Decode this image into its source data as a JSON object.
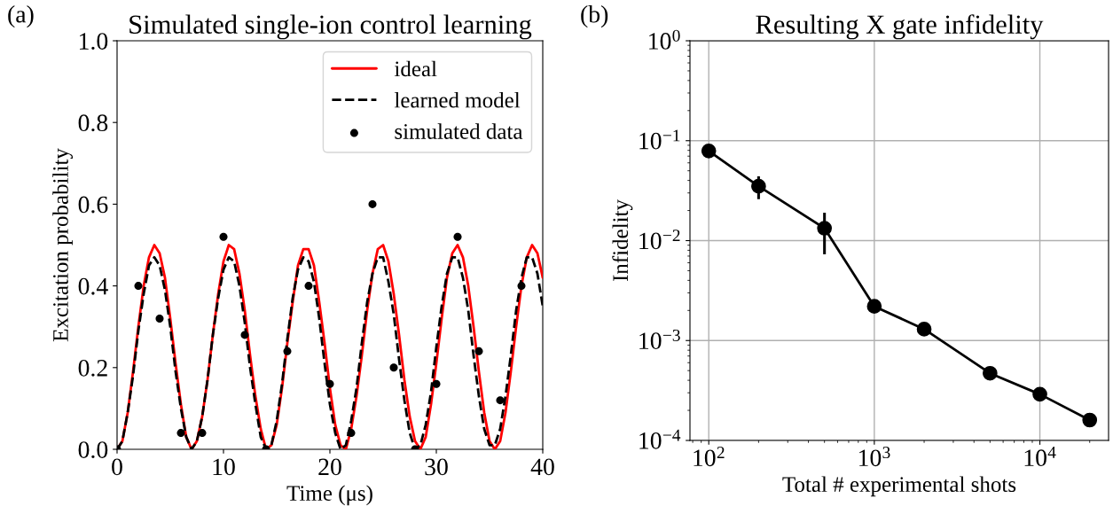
{
  "chart_data": [
    {
      "type": "line",
      "title": "Simulated single-ion control learning",
      "xlabel": "Time (μs)",
      "ylabel": "Excitation probability",
      "xlim": [
        0,
        40
      ],
      "ylim": [
        0,
        1
      ],
      "xticks": [
        0,
        10,
        20,
        30,
        40
      ],
      "yticks": [
        {
          "value": 0,
          "label": "0.0"
        },
        0.2,
        0.4,
        0.6,
        0.8,
        {
          "value": 1,
          "label": "1.0"
        }
      ],
      "legend": "top right",
      "annotations": [
        "(a)"
      ],
      "x": [
        0,
        0.5,
        1,
        1.5,
        2,
        2.5,
        3,
        3.5,
        4,
        4.5,
        5,
        5.5,
        6,
        6.5,
        7,
        7.5,
        8,
        8.5,
        9,
        9.5,
        10,
        10.5,
        11,
        11.5,
        12,
        12.5,
        13,
        13.5,
        14,
        14.5,
        15,
        15.5,
        16,
        16.5,
        17,
        17.5,
        18,
        18.5,
        19,
        19.5,
        20,
        20.5,
        21,
        21.5,
        22,
        22.5,
        23,
        23.5,
        24,
        24.5,
        25,
        25.5,
        26,
        26.5,
        27,
        27.5,
        28,
        28.5,
        29,
        29.5,
        30,
        30.5,
        31,
        31.5,
        32,
        32.5,
        33,
        33.5,
        34,
        34.5,
        35,
        35.5,
        36,
        36.5,
        37,
        37.5,
        38,
        38.5,
        39,
        39.5,
        40
      ],
      "series": [
        {
          "name": "ideal",
          "type": "line",
          "color": "#ff0000",
          "line_style": "solid",
          "values": [
            0,
            0.02,
            0.09,
            0.19,
            0.3,
            0.4,
            0.47,
            0.5,
            0.48,
            0.42,
            0.32,
            0.21,
            0.11,
            0.03,
            0.0,
            0.02,
            0.08,
            0.17,
            0.28,
            0.38,
            0.46,
            0.5,
            0.49,
            0.43,
            0.34,
            0.23,
            0.13,
            0.05,
            0.0,
            0.01,
            0.06,
            0.15,
            0.26,
            0.36,
            0.45,
            0.49,
            0.49,
            0.45,
            0.36,
            0.26,
            0.15,
            0.06,
            0.01,
            0.0,
            0.05,
            0.13,
            0.23,
            0.34,
            0.43,
            0.49,
            0.5,
            0.46,
            0.38,
            0.28,
            0.17,
            0.08,
            0.02,
            0.0,
            0.03,
            0.11,
            0.21,
            0.32,
            0.42,
            0.48,
            0.5,
            0.47,
            0.4,
            0.3,
            0.19,
            0.09,
            0.02,
            0.0,
            0.02,
            0.09,
            0.19,
            0.3,
            0.4,
            0.47,
            0.5,
            0.48,
            0.42
          ]
        },
        {
          "name": "learned model",
          "type": "line",
          "color": "#000000",
          "line_style": "dashed",
          "values": [
            0,
            0.02,
            0.09,
            0.18,
            0.29,
            0.38,
            0.45,
            0.47,
            0.45,
            0.39,
            0.3,
            0.19,
            0.1,
            0.03,
            0.0,
            0.02,
            0.08,
            0.17,
            0.28,
            0.37,
            0.44,
            0.47,
            0.46,
            0.4,
            0.31,
            0.2,
            0.11,
            0.03,
            0.0,
            0.01,
            0.07,
            0.16,
            0.27,
            0.37,
            0.44,
            0.47,
            0.46,
            0.41,
            0.32,
            0.21,
            0.11,
            0.04,
            0.0,
            0.01,
            0.07,
            0.15,
            0.26,
            0.36,
            0.43,
            0.47,
            0.47,
            0.41,
            0.33,
            0.22,
            0.12,
            0.04,
            0.0,
            0.01,
            0.06,
            0.14,
            0.25,
            0.35,
            0.43,
            0.47,
            0.47,
            0.42,
            0.34,
            0.23,
            0.13,
            0.05,
            0.01,
            0.01,
            0.05,
            0.13,
            0.23,
            0.34,
            0.42,
            0.47,
            0.47,
            0.43,
            0.35
          ]
        },
        {
          "name": "simulated data",
          "type": "scatter",
          "color": "#000000",
          "marker": "circle",
          "x": [
            0,
            2,
            4,
            6,
            8,
            10,
            12,
            14,
            16,
            18,
            20,
            22,
            24,
            26,
            28,
            30,
            32,
            34,
            36,
            38
          ],
          "values": [
            0,
            0.4,
            0.32,
            0.04,
            0.04,
            0.52,
            0.28,
            0,
            0.24,
            0.4,
            0.16,
            0.04,
            0.6,
            0.2,
            0,
            0.16,
            0.52,
            0.24,
            0.12,
            0.4
          ]
        }
      ]
    },
    {
      "type": "line",
      "title": "Resulting X gate infidelity",
      "xlabel": "Total # experimental shots",
      "ylabel": "Infidelity",
      "log": "xy",
      "grid": true,
      "marker": "circle",
      "annotations": [
        "(b)"
      ],
      "xlim": [
        77,
        26000
      ],
      "ylim": [
        0.0001,
        1
      ],
      "xticks": [
        {
          "value": 100,
          "label": "10$^{2}$"
        },
        {
          "value": 1000,
          "label": "10$^{3}$"
        },
        {
          "value": 10000,
          "label": "10$^{4}$"
        }
      ],
      "yticks": [
        {
          "value": 0.0001,
          "label": "10$^{−4}$"
        },
        {
          "value": 0.001,
          "label": "10$^{−3}$"
        },
        {
          "value": 0.01,
          "label": "10$^{−2}$"
        },
        {
          "value": 0.1,
          "label": "10$^{−1}$"
        },
        {
          "value": 1,
          "label": "10$^{0}$"
        }
      ],
      "x": [
        100,
        200,
        500,
        1000,
        2000,
        5000,
        10000,
        20000
      ],
      "series": [
        {
          "color": "#000000",
          "values": [
            0.079,
            0.035,
            0.0133,
            0.0022,
            0.0013,
            0.00047,
            0.00029,
            0.00016
          ],
          "errors": [
            [
              0.068,
              0.089
            ],
            [
              0.026,
              0.044
            ],
            [
              0.0073,
              0.019
            ],
            null,
            null,
            null,
            null,
            null
          ]
        }
      ]
    }
  ]
}
